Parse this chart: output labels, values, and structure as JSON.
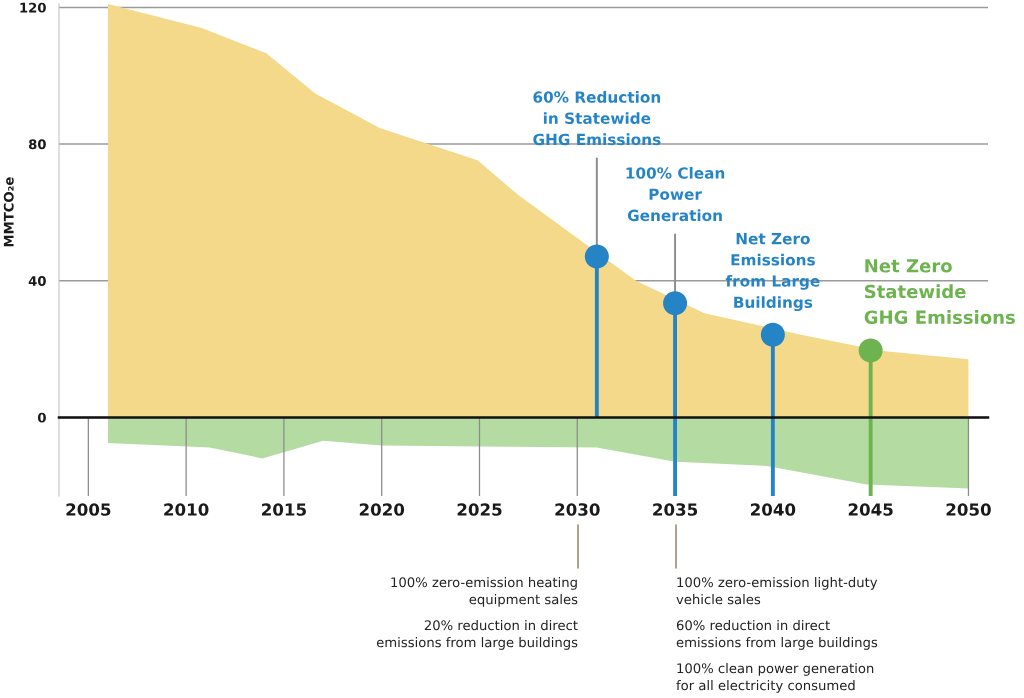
{
  "chart_data": {
    "type": "area",
    "ylabel": "MMTCO₂e",
    "xlim": [
      2003.5,
      2051
    ],
    "xticks": [
      2005,
      2010,
      2015,
      2020,
      2025,
      2030,
      2035,
      2040,
      2045,
      2050
    ],
    "ylim": [
      -23,
      121
    ],
    "yticks": [
      0,
      40,
      80,
      120
    ],
    "grid": "y",
    "series": [
      {
        "color": "#f5d98a",
        "x": [
          2006,
          2010.8,
          2014.1,
          2016.6,
          2019.9,
          2024.9,
          2027,
          2033,
          2036.5,
          2041.5,
          2045.5,
          2050
        ],
        "values": [
          121,
          114,
          106.6,
          94.8,
          84.7,
          75.3,
          65,
          40,
          30.5,
          24.1,
          19.5,
          17
        ]
      },
      {
        "color": "#b4dca2",
        "x": [
          2006,
          2011.2,
          2013.9,
          2017,
          2020,
          2025,
          2031,
          2035,
          2039.7,
          2044.8,
          2050
        ],
        "values": [
          -7.5,
          -8.8,
          -12,
          -6.8,
          -8.2,
          -8.5,
          -8.8,
          -13,
          -14.2,
          -19.6,
          -20.8
        ]
      },
      {
        "type": "lollipop",
        "marker": "circle",
        "x": [
          2031,
          2035,
          2040,
          2045
        ],
        "values": [
          47.1,
          33.4,
          24.2,
          19.6
        ],
        "colors": [
          "#2584c6",
          "#2584c6",
          "#2584c6",
          "#6db34f"
        ]
      }
    ],
    "annotations": [
      {
        "text": "60% Reduction\nin Statewide\nGHG Emissions",
        "x": 2031,
        "y": 47.1
      },
      {
        "text": "100% Clean\nPower\nGeneration",
        "x": 2035,
        "y": 33.4
      },
      {
        "text": "Net Zero\nEmissions\nfrom Large\nBuildings",
        "x": 2040,
        "y": 24.2
      },
      {
        "text": "Net Zero\nStatewide\nGHG Emissions",
        "x": 2045,
        "y": 19.6
      },
      "100% zero-emission heating\nequipment sales",
      "20% reduction in direct\nemissions from large buildings",
      "100% zero-emission light-duty\nvehicle sales",
      "60% reduction in direct\nemissions from large buildings",
      "100% clean power generation\nfor all electricity consumed"
    ]
  }
}
